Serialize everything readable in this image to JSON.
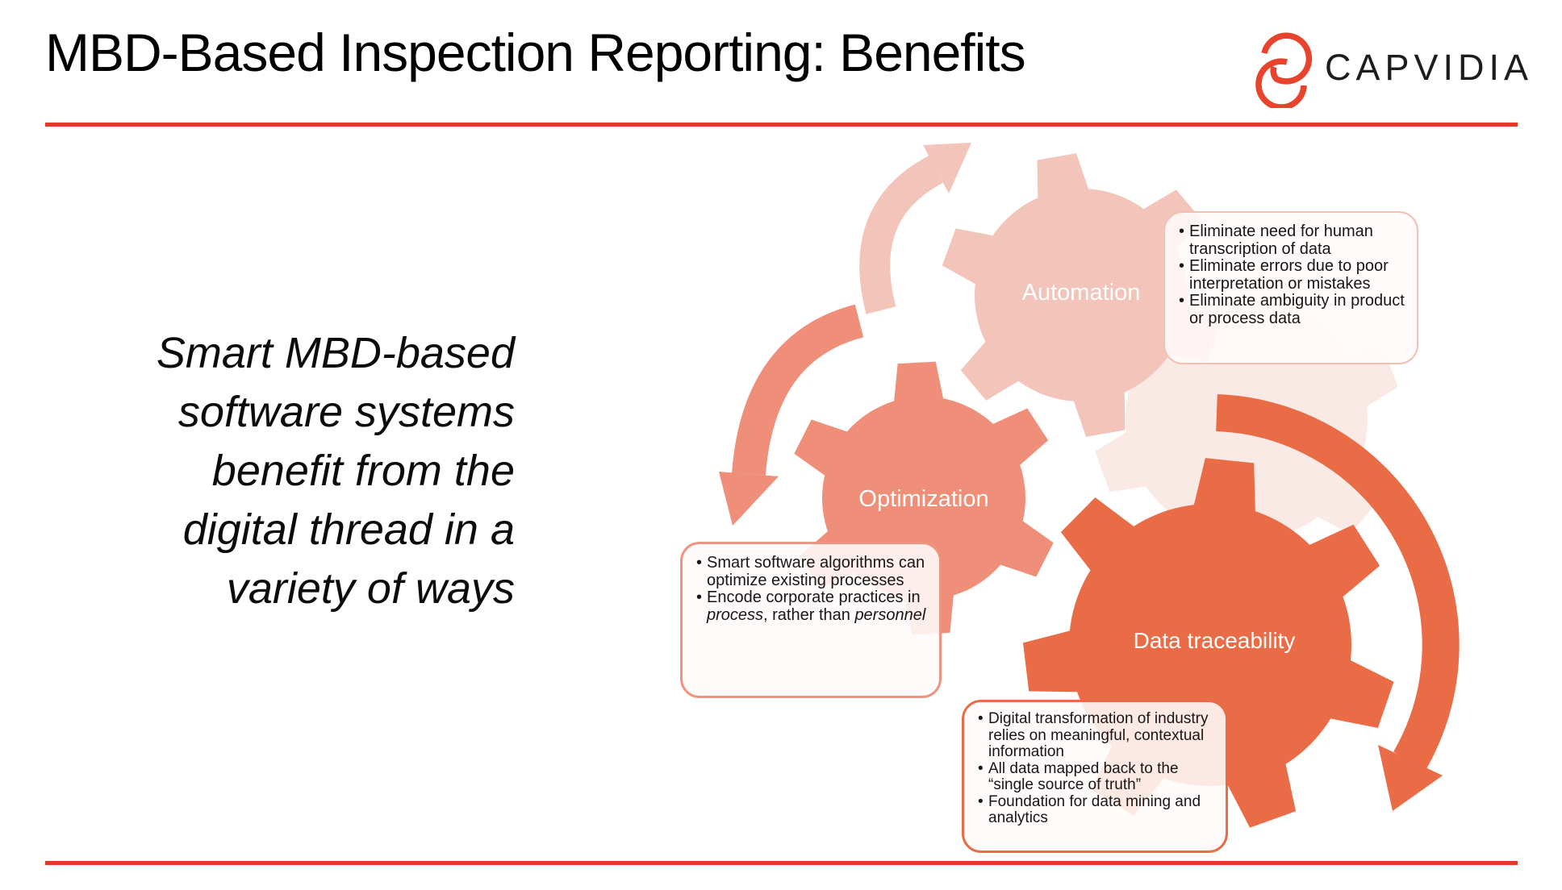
{
  "slide_title": "MBD-Based Inspection Reporting: Benefits",
  "brand": {
    "name": "CAPVIDIA"
  },
  "quote": {
    "lines": [
      "Smart MBD-based",
      "software systems",
      "benefit from the",
      "digital thread in a",
      "variety of ways"
    ]
  },
  "colors": {
    "automation": "#f2c4ba",
    "optimization": "#ef8e79",
    "data_traceability": "#e96c47",
    "rule_red": "#e5382a",
    "logo_red": "#e8432c"
  },
  "automation": {
    "label": "Automation",
    "bullets": [
      "Eliminate need for human transcription of data",
      "Eliminate errors due to poor interpretation or mistakes",
      "Eliminate ambiguity in product or process data"
    ]
  },
  "optimization": {
    "label": "Optimization",
    "bullet1": "Smart software algorithms can optimize existing processes",
    "bullet2": {
      "lead": "Encode corporate practices in ",
      "italic1": "process",
      "middle": ", rather than ",
      "italic2": "personnel"
    }
  },
  "data_traceability": {
    "label": "Data traceability",
    "bullets": [
      "Digital transformation of industry relies on meaningful, contextual information",
      "All data mapped back to the “single source of truth”",
      "Foundation for data mining and analytics"
    ]
  }
}
